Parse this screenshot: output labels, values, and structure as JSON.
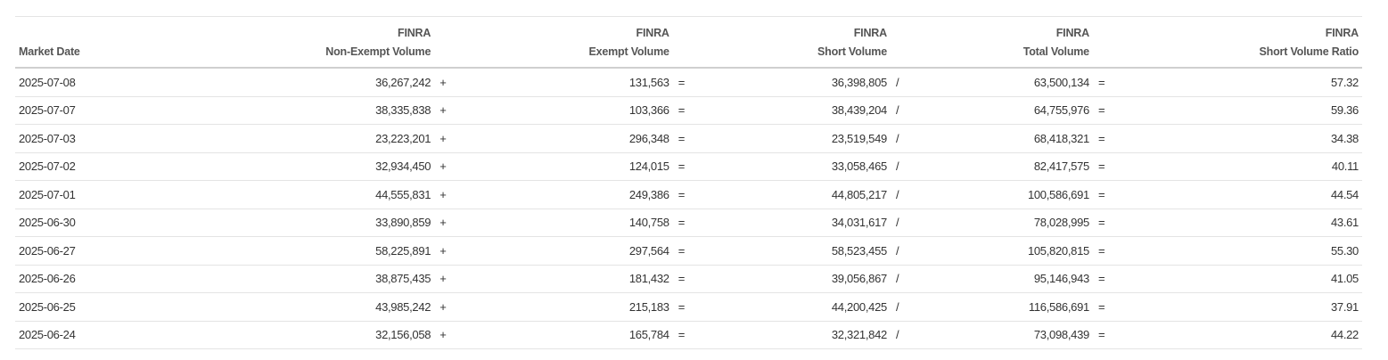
{
  "table": {
    "headers": {
      "market_date": "Market Date",
      "non_exempt_top": "FINRA",
      "non_exempt_bottom": "Non-Exempt Volume",
      "exempt_top": "FINRA",
      "exempt_bottom": "Exempt Volume",
      "short_top": "FINRA",
      "short_bottom": "Short Volume",
      "total_top": "FINRA",
      "total_bottom": "Total Volume",
      "ratio_top": "FINRA",
      "ratio_bottom": "Short Volume Ratio"
    },
    "operators": {
      "plus": "+",
      "equals": "=",
      "divide": "/"
    },
    "rows": [
      {
        "date": "2025-07-08",
        "non_exempt": "36,267,242",
        "exempt": "131,563",
        "short": "36,398,805",
        "total": "63,500,134",
        "ratio": "57.32"
      },
      {
        "date": "2025-07-07",
        "non_exempt": "38,335,838",
        "exempt": "103,366",
        "short": "38,439,204",
        "total": "64,755,976",
        "ratio": "59.36"
      },
      {
        "date": "2025-07-03",
        "non_exempt": "23,223,201",
        "exempt": "296,348",
        "short": "23,519,549",
        "total": "68,418,321",
        "ratio": "34.38"
      },
      {
        "date": "2025-07-02",
        "non_exempt": "32,934,450",
        "exempt": "124,015",
        "short": "33,058,465",
        "total": "82,417,575",
        "ratio": "40.11"
      },
      {
        "date": "2025-07-01",
        "non_exempt": "44,555,831",
        "exempt": "249,386",
        "short": "44,805,217",
        "total": "100,586,691",
        "ratio": "44.54"
      },
      {
        "date": "2025-06-30",
        "non_exempt": "33,890,859",
        "exempt": "140,758",
        "short": "34,031,617",
        "total": "78,028,995",
        "ratio": "43.61"
      },
      {
        "date": "2025-06-27",
        "non_exempt": "58,225,891",
        "exempt": "297,564",
        "short": "58,523,455",
        "total": "105,820,815",
        "ratio": "55.30"
      },
      {
        "date": "2025-06-26",
        "non_exempt": "38,875,435",
        "exempt": "181,432",
        "short": "39,056,867",
        "total": "95,146,943",
        "ratio": "41.05"
      },
      {
        "date": "2025-06-25",
        "non_exempt": "43,985,242",
        "exempt": "215,183",
        "short": "44,200,425",
        "total": "116,586,691",
        "ratio": "37.91"
      },
      {
        "date": "2025-06-24",
        "non_exempt": "32,156,058",
        "exempt": "165,784",
        "short": "32,321,842",
        "total": "73,098,439",
        "ratio": "44.22"
      }
    ]
  }
}
